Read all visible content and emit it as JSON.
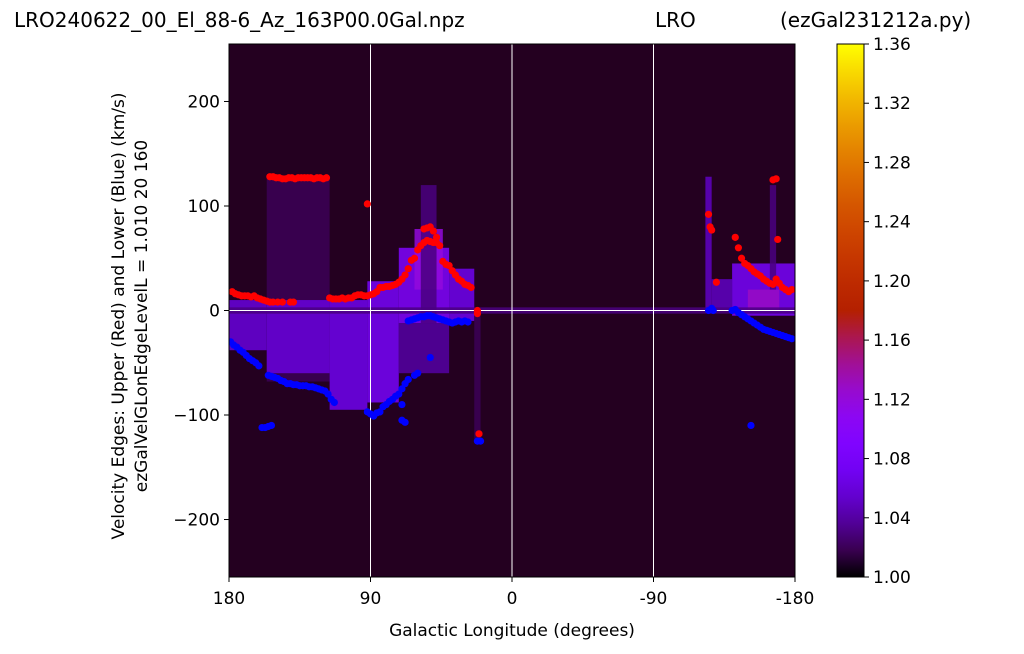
{
  "titles": {
    "left": "LRO240622_00_El_88-6_Az_163P00.0Gal.npz",
    "center": "LRO",
    "right": "(ezGal231212a.py)"
  },
  "chart_data": {
    "type": "heatmap",
    "xlabel": "Galactic Longitude (degrees)",
    "ylabel_line1": "Velocity Edges: Upper (Red) and Lower (Blue) (km/s)",
    "ylabel_line2": "ezGalVelGLonEdgeLevelL = 1.010  20  160",
    "xlim": [
      180,
      -180
    ],
    "ylim": [
      -255,
      255
    ],
    "x_ticks": [
      {
        "value": 180,
        "label": "180"
      },
      {
        "value": 90,
        "label": "90"
      },
      {
        "value": 0,
        "label": "0"
      },
      {
        "value": -90,
        "label": "-90"
      },
      {
        "value": -180,
        "label": "-180"
      }
    ],
    "y_ticks": [
      {
        "value": 200,
        "label": "200"
      },
      {
        "value": 100,
        "label": "100"
      },
      {
        "value": 0,
        "label": "0"
      },
      {
        "value": -100,
        "label": "−100"
      },
      {
        "value": -200,
        "label": "−200"
      }
    ],
    "grid_lines_x": [
      90,
      0,
      -90
    ],
    "grid_lines_y": [
      0
    ],
    "colorbar": {
      "colormap": "gnuplot",
      "range": [
        1.0,
        1.36
      ],
      "ticks": [
        "1.00",
        "1.04",
        "1.08",
        "1.12",
        "1.16",
        "1.20",
        "1.24",
        "1.28",
        "1.32",
        "1.36"
      ]
    },
    "emission_regions": [
      {
        "x0": 180,
        "x1": 156,
        "y0": -38,
        "y1": 10,
        "level": 1.06
      },
      {
        "x0": 156,
        "x1": 116,
        "y0": -68,
        "y1": 128,
        "level": 1.02
      },
      {
        "x0": 156,
        "x1": 116,
        "y0": -60,
        "y1": 10,
        "level": 1.06
      },
      {
        "x0": 116,
        "x1": 92,
        "y0": -95,
        "y1": 10,
        "level": 1.07
      },
      {
        "x0": 92,
        "x1": 72,
        "y0": -88,
        "y1": 28,
        "level": 1.08
      },
      {
        "x0": 72,
        "x1": 40,
        "y0": -12,
        "y1": 60,
        "level": 1.09
      },
      {
        "x0": 72,
        "x1": 40,
        "y0": -60,
        "y1": -12,
        "level": 1.04
      },
      {
        "x0": 62,
        "x1": 44,
        "y0": 20,
        "y1": 78,
        "level": 1.12
      },
      {
        "x0": 58,
        "x1": 48,
        "y0": -12,
        "y1": 120,
        "level": 1.03
      },
      {
        "x0": 40,
        "x1": 24,
        "y0": -10,
        "y1": 40,
        "level": 1.07
      },
      {
        "x0": 24,
        "x1": 20,
        "y0": -125,
        "y1": -2,
        "level": 1.02
      },
      {
        "x0": -123,
        "x1": -127,
        "y0": 2,
        "y1": 128,
        "level": 1.05
      },
      {
        "x0": -127,
        "x1": -140,
        "y0": 0,
        "y1": 30,
        "level": 1.05
      },
      {
        "x0": -140,
        "x1": -180,
        "y0": -5,
        "y1": 45,
        "level": 1.08
      },
      {
        "x0": -150,
        "x1": -170,
        "y0": 0,
        "y1": 20,
        "level": 1.13
      },
      {
        "x0": -164,
        "x1": -168,
        "y0": 20,
        "y1": 120,
        "level": 1.03
      },
      {
        "x0": 180,
        "x1": -180,
        "y0": -3,
        "y1": 3,
        "level": 1.03
      }
    ],
    "series": [
      {
        "color": "#ff0000",
        "points": [
          [
            178,
            18
          ],
          [
            176,
            16
          ],
          [
            174,
            15
          ],
          [
            172,
            14
          ],
          [
            170,
            14
          ],
          [
            168,
            14
          ],
          [
            166,
            13
          ],
          [
            164,
            14
          ],
          [
            162,
            12
          ],
          [
            160,
            11
          ],
          [
            158,
            10
          ],
          [
            156,
            9
          ],
          [
            154,
            8
          ],
          [
            152,
            8
          ],
          [
            149,
            8
          ],
          [
            146,
            8
          ],
          [
            141,
            8
          ],
          [
            139,
            8
          ],
          [
            154,
            128
          ],
          [
            152,
            128
          ],
          [
            150,
            127
          ],
          [
            148,
            127
          ],
          [
            146,
            126
          ],
          [
            144,
            126
          ],
          [
            142,
            127
          ],
          [
            140,
            127
          ],
          [
            138,
            126
          ],
          [
            136,
            127
          ],
          [
            134,
            127
          ],
          [
            132,
            127
          ],
          [
            130,
            127
          ],
          [
            128,
            127
          ],
          [
            126,
            126
          ],
          [
            124,
            127
          ],
          [
            122,
            127
          ],
          [
            120,
            126
          ],
          [
            118,
            127
          ],
          [
            116,
            12
          ],
          [
            114,
            11
          ],
          [
            112,
            11
          ],
          [
            110,
            11
          ],
          [
            108,
            12
          ],
          [
            106,
            11
          ],
          [
            92,
            102
          ],
          [
            104,
            12
          ],
          [
            102,
            12
          ],
          [
            100,
            14
          ],
          [
            98,
            15
          ],
          [
            96,
            15
          ],
          [
            94,
            14
          ],
          [
            92,
            14
          ],
          [
            90,
            15
          ],
          [
            88,
            16
          ],
          [
            86,
            18
          ],
          [
            84,
            22
          ],
          [
            82,
            22
          ],
          [
            80,
            23
          ],
          [
            78,
            23
          ],
          [
            76,
            24
          ],
          [
            74,
            25
          ],
          [
            72,
            27
          ],
          [
            70,
            30
          ],
          [
            68,
            34
          ],
          [
            66,
            40
          ],
          [
            64,
            48
          ],
          [
            62,
            50
          ],
          [
            60,
            58
          ],
          [
            58,
            62
          ],
          [
            56,
            65
          ],
          [
            54,
            67
          ],
          [
            52,
            66
          ],
          [
            50,
            65
          ],
          [
            48,
            65
          ],
          [
            46,
            62
          ],
          [
            56,
            78
          ],
          [
            54,
            79
          ],
          [
            52,
            80
          ],
          [
            50,
            76
          ],
          [
            48,
            70
          ],
          [
            44,
            47
          ],
          [
            42,
            44
          ],
          [
            40,
            43
          ],
          [
            38,
            38
          ],
          [
            36,
            34
          ],
          [
            34,
            30
          ],
          [
            32,
            28
          ],
          [
            30,
            25
          ],
          [
            28,
            24
          ],
          [
            26,
            22
          ],
          [
            22,
            0
          ],
          [
            22,
            -3
          ],
          [
            21,
            -118
          ],
          [
            -125,
            92
          ],
          [
            -126,
            80
          ],
          [
            -127,
            77
          ],
          [
            -130,
            27
          ],
          [
            -142,
            70
          ],
          [
            -144,
            60
          ],
          [
            -146,
            50
          ],
          [
            -148,
            45
          ],
          [
            -150,
            43
          ],
          [
            -152,
            40
          ],
          [
            -154,
            37
          ],
          [
            -156,
            35
          ],
          [
            -158,
            33
          ],
          [
            -160,
            30
          ],
          [
            -162,
            28
          ],
          [
            -164,
            26
          ],
          [
            -166,
            25
          ],
          [
            -168,
            30
          ],
          [
            -170,
            26
          ],
          [
            -172,
            22
          ],
          [
            -174,
            20
          ],
          [
            -176,
            18
          ],
          [
            -178,
            20
          ],
          [
            -166,
            125
          ],
          [
            -168,
            126
          ],
          [
            -169,
            68
          ]
        ]
      },
      {
        "color": "#0000ff",
        "points": [
          [
            179,
            -30
          ],
          [
            177,
            -33
          ],
          [
            175,
            -35
          ],
          [
            173,
            -38
          ],
          [
            171,
            -40
          ],
          [
            169,
            -43
          ],
          [
            167,
            -46
          ],
          [
            165,
            -48
          ],
          [
            163,
            -50
          ],
          [
            161,
            -53
          ],
          [
            155,
            -62
          ],
          [
            153,
            -63
          ],
          [
            151,
            -64
          ],
          [
            149,
            -65
          ],
          [
            147,
            -67
          ],
          [
            145,
            -68
          ],
          [
            143,
            -70
          ],
          [
            141,
            -70
          ],
          [
            139,
            -71
          ],
          [
            137,
            -71
          ],
          [
            135,
            -72
          ],
          [
            133,
            -72
          ],
          [
            131,
            -72
          ],
          [
            129,
            -73
          ],
          [
            127,
            -73
          ],
          [
            125,
            -74
          ],
          [
            123,
            -75
          ],
          [
            121,
            -76
          ],
          [
            119,
            -77
          ],
          [
            117,
            -80
          ],
          [
            115,
            -85
          ],
          [
            113,
            -88
          ],
          [
            159,
            -112
          ],
          [
            157,
            -112
          ],
          [
            155,
            -111
          ],
          [
            153,
            -110
          ],
          [
            92,
            -97
          ],
          [
            90,
            -99
          ],
          [
            88,
            -101
          ],
          [
            86,
            -98
          ],
          [
            84,
            -97
          ],
          [
            82,
            -92
          ],
          [
            80,
            -90
          ],
          [
            78,
            -87
          ],
          [
            76,
            -85
          ],
          [
            74,
            -82
          ],
          [
            72,
            -80
          ],
          [
            70,
            -75
          ],
          [
            68,
            -70
          ],
          [
            66,
            -66
          ],
          [
            62,
            -62
          ],
          [
            60,
            -60
          ],
          [
            70,
            -90
          ],
          [
            70,
            -105
          ],
          [
            68,
            -107
          ],
          [
            52,
            -45
          ],
          [
            66,
            -10
          ],
          [
            64,
            -9
          ],
          [
            62,
            -8
          ],
          [
            60,
            -7
          ],
          [
            58,
            -6
          ],
          [
            56,
            -6
          ],
          [
            54,
            -5
          ],
          [
            52,
            -5
          ],
          [
            50,
            -6
          ],
          [
            48,
            -7
          ],
          [
            46,
            -8
          ],
          [
            44,
            -9
          ],
          [
            42,
            -10
          ],
          [
            40,
            -11
          ],
          [
            38,
            -12
          ],
          [
            36,
            -11
          ],
          [
            34,
            -10
          ],
          [
            32,
            -11
          ],
          [
            30,
            -10
          ],
          [
            28,
            -11
          ],
          [
            22,
            -125
          ],
          [
            20,
            -125
          ],
          [
            -125,
            0
          ],
          [
            -127,
            2
          ],
          [
            -128,
            0
          ],
          [
            -140,
            0
          ],
          [
            -142,
            1
          ],
          [
            -144,
            -2
          ],
          [
            -146,
            -4
          ],
          [
            -148,
            -6
          ],
          [
            -150,
            -8
          ],
          [
            -152,
            -10
          ],
          [
            -154,
            -12
          ],
          [
            -156,
            -14
          ],
          [
            -158,
            -16
          ],
          [
            -160,
            -18
          ],
          [
            -162,
            -19
          ],
          [
            -164,
            -20
          ],
          [
            -166,
            -21
          ],
          [
            -168,
            -22
          ],
          [
            -170,
            -23
          ],
          [
            -172,
            -24
          ],
          [
            -174,
            -25
          ],
          [
            -176,
            -26
          ],
          [
            -178,
            -27
          ],
          [
            -152,
            -110
          ]
        ]
      }
    ]
  }
}
